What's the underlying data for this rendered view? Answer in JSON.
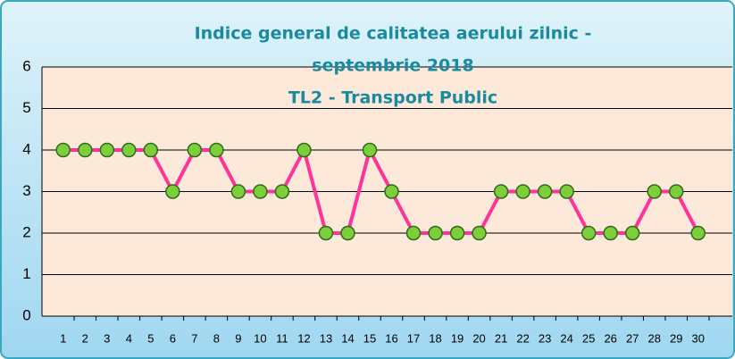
{
  "chart_data": {
    "type": "line",
    "title_lines": [
      "Indice general de calitatea aerului zilnic -",
      "septembrie 2018",
      "TL2 - Transport Public"
    ],
    "categories": [
      "1",
      "2",
      "3",
      "4",
      "5",
      "6",
      "7",
      "8",
      "9",
      "10",
      "11",
      "12",
      "13",
      "14",
      "15",
      "16",
      "17",
      "18",
      "19",
      "20",
      "21",
      "22",
      "23",
      "24",
      "25",
      "26",
      "27",
      "28",
      "29",
      "30"
    ],
    "series": [
      {
        "color": "#ff3399",
        "marker_color": "#7ccf3a",
        "values": [
          4,
          4,
          4,
          4,
          4,
          3,
          4,
          4,
          3,
          3,
          3,
          4,
          2,
          2,
          4,
          3,
          2,
          2,
          2,
          2,
          3,
          3,
          3,
          3,
          2,
          2,
          2,
          3,
          3,
          2
        ]
      }
    ],
    "ylim": [
      0,
      6
    ],
    "yticks": [
      0,
      1,
      2,
      3,
      4,
      5,
      6
    ],
    "grid": true
  }
}
